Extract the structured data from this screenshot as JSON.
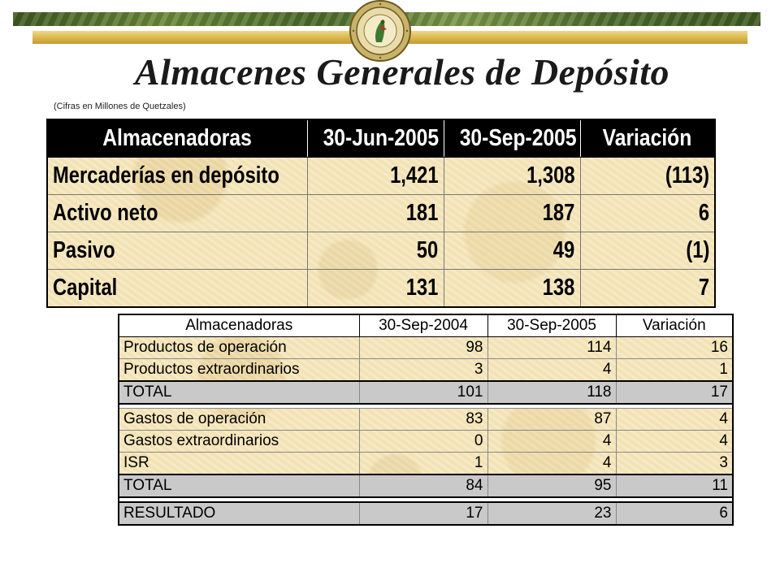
{
  "header": {
    "title": "Almacenes Generales de Depósito",
    "subtitle": "(Cifras en Millones de Quetzales)"
  },
  "colors": {
    "bar_green": "#4b6a2a",
    "bar_gold": "#d9b64c",
    "parchment": "#f5e7bd",
    "total_row": "#c9c9c9"
  },
  "table1": {
    "headers": [
      "Almacenadoras",
      "30-Jun-2005",
      "30-Sep-2005",
      "Variación"
    ],
    "rows": [
      [
        "Mercaderías en depósito",
        "1,421",
        "1,308",
        "(113)"
      ],
      [
        "Activo neto",
        "181",
        "187",
        "6"
      ],
      [
        "Pasivo",
        "50",
        "49",
        "(1)"
      ],
      [
        "Capital",
        "131",
        "138",
        "7"
      ]
    ]
  },
  "table2": {
    "headers": [
      "Almacenadoras",
      "30-Sep-2004",
      "30-Sep-2005",
      "Variación"
    ],
    "income_rows": [
      [
        "Productos de operación",
        "98",
        "114",
        "16"
      ],
      [
        "Productos extraordinarios",
        "3",
        "4",
        "1"
      ]
    ],
    "income_total": [
      "TOTAL",
      "101",
      "118",
      "17"
    ],
    "expense_rows": [
      [
        "Gastos de operación",
        "83",
        "87",
        "4"
      ],
      [
        "Gastos extraordinarios",
        "0",
        "4",
        "4"
      ],
      [
        "ISR",
        "1",
        "4",
        "3"
      ]
    ],
    "expense_total": [
      "TOTAL",
      "84",
      "95",
      "11"
    ],
    "result": [
      "RESULTADO",
      "17",
      "23",
      "6"
    ]
  }
}
